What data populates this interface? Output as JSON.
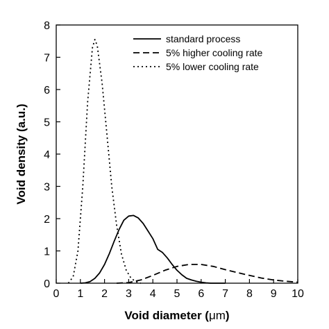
{
  "chart_data": {
    "type": "line",
    "xlabel_prefix": "Void diameter (",
    "xlabel_unit": "μm",
    "xlabel_suffix": ")",
    "ylabel": "Void density (a.u.)",
    "xlim": [
      0,
      10
    ],
    "ylim": [
      0,
      8
    ],
    "xticks": [
      0,
      1,
      2,
      3,
      4,
      5,
      6,
      7,
      8,
      9,
      10
    ],
    "yticks": [
      0,
      1,
      2,
      3,
      4,
      5,
      6,
      7,
      8
    ],
    "grid": false,
    "legend_position": "top-right",
    "series": [
      {
        "name": "standard process",
        "dash": "solid",
        "x": [
          1.0,
          1.2,
          1.4,
          1.6,
          1.8,
          2.0,
          2.2,
          2.4,
          2.6,
          2.8,
          3.0,
          3.2,
          3.4,
          3.6,
          3.8,
          4.0,
          4.2,
          4.4,
          4.6,
          4.8,
          5.0,
          5.2,
          5.4,
          5.6,
          5.8,
          6.0,
          6.2,
          6.4,
          6.6,
          6.8,
          7.0
        ],
        "y": [
          0.0,
          0.01,
          0.05,
          0.15,
          0.32,
          0.58,
          0.92,
          1.3,
          1.66,
          1.95,
          2.08,
          2.1,
          2.02,
          1.85,
          1.62,
          1.38,
          1.05,
          0.95,
          0.78,
          0.58,
          0.4,
          0.26,
          0.15,
          0.1,
          0.06,
          0.03,
          0.01,
          0.0,
          0.0,
          0.0,
          0.0
        ]
      },
      {
        "name": "5% higher cooling rate",
        "dash": "dashed",
        "x": [
          2.5,
          3.0,
          3.5,
          4.0,
          4.5,
          5.0,
          5.5,
          6.0,
          6.5,
          7.0,
          7.5,
          8.0,
          8.5,
          9.0,
          9.5,
          10.0
        ],
        "y": [
          0.0,
          0.02,
          0.1,
          0.24,
          0.4,
          0.52,
          0.58,
          0.58,
          0.52,
          0.42,
          0.33,
          0.24,
          0.16,
          0.1,
          0.06,
          0.03
        ]
      },
      {
        "name": "5% lower cooling rate",
        "dash": "dotted",
        "x": [
          0.5,
          0.7,
          0.9,
          1.1,
          1.3,
          1.5,
          1.6,
          1.7,
          1.9,
          2.1,
          2.3,
          2.5,
          2.7,
          2.9,
          3.1,
          3.3,
          3.5
        ],
        "y": [
          0.0,
          0.2,
          1.0,
          3.0,
          5.6,
          7.3,
          7.55,
          7.35,
          6.2,
          4.6,
          3.0,
          1.8,
          0.9,
          0.4,
          0.15,
          0.05,
          0.0
        ]
      }
    ]
  }
}
